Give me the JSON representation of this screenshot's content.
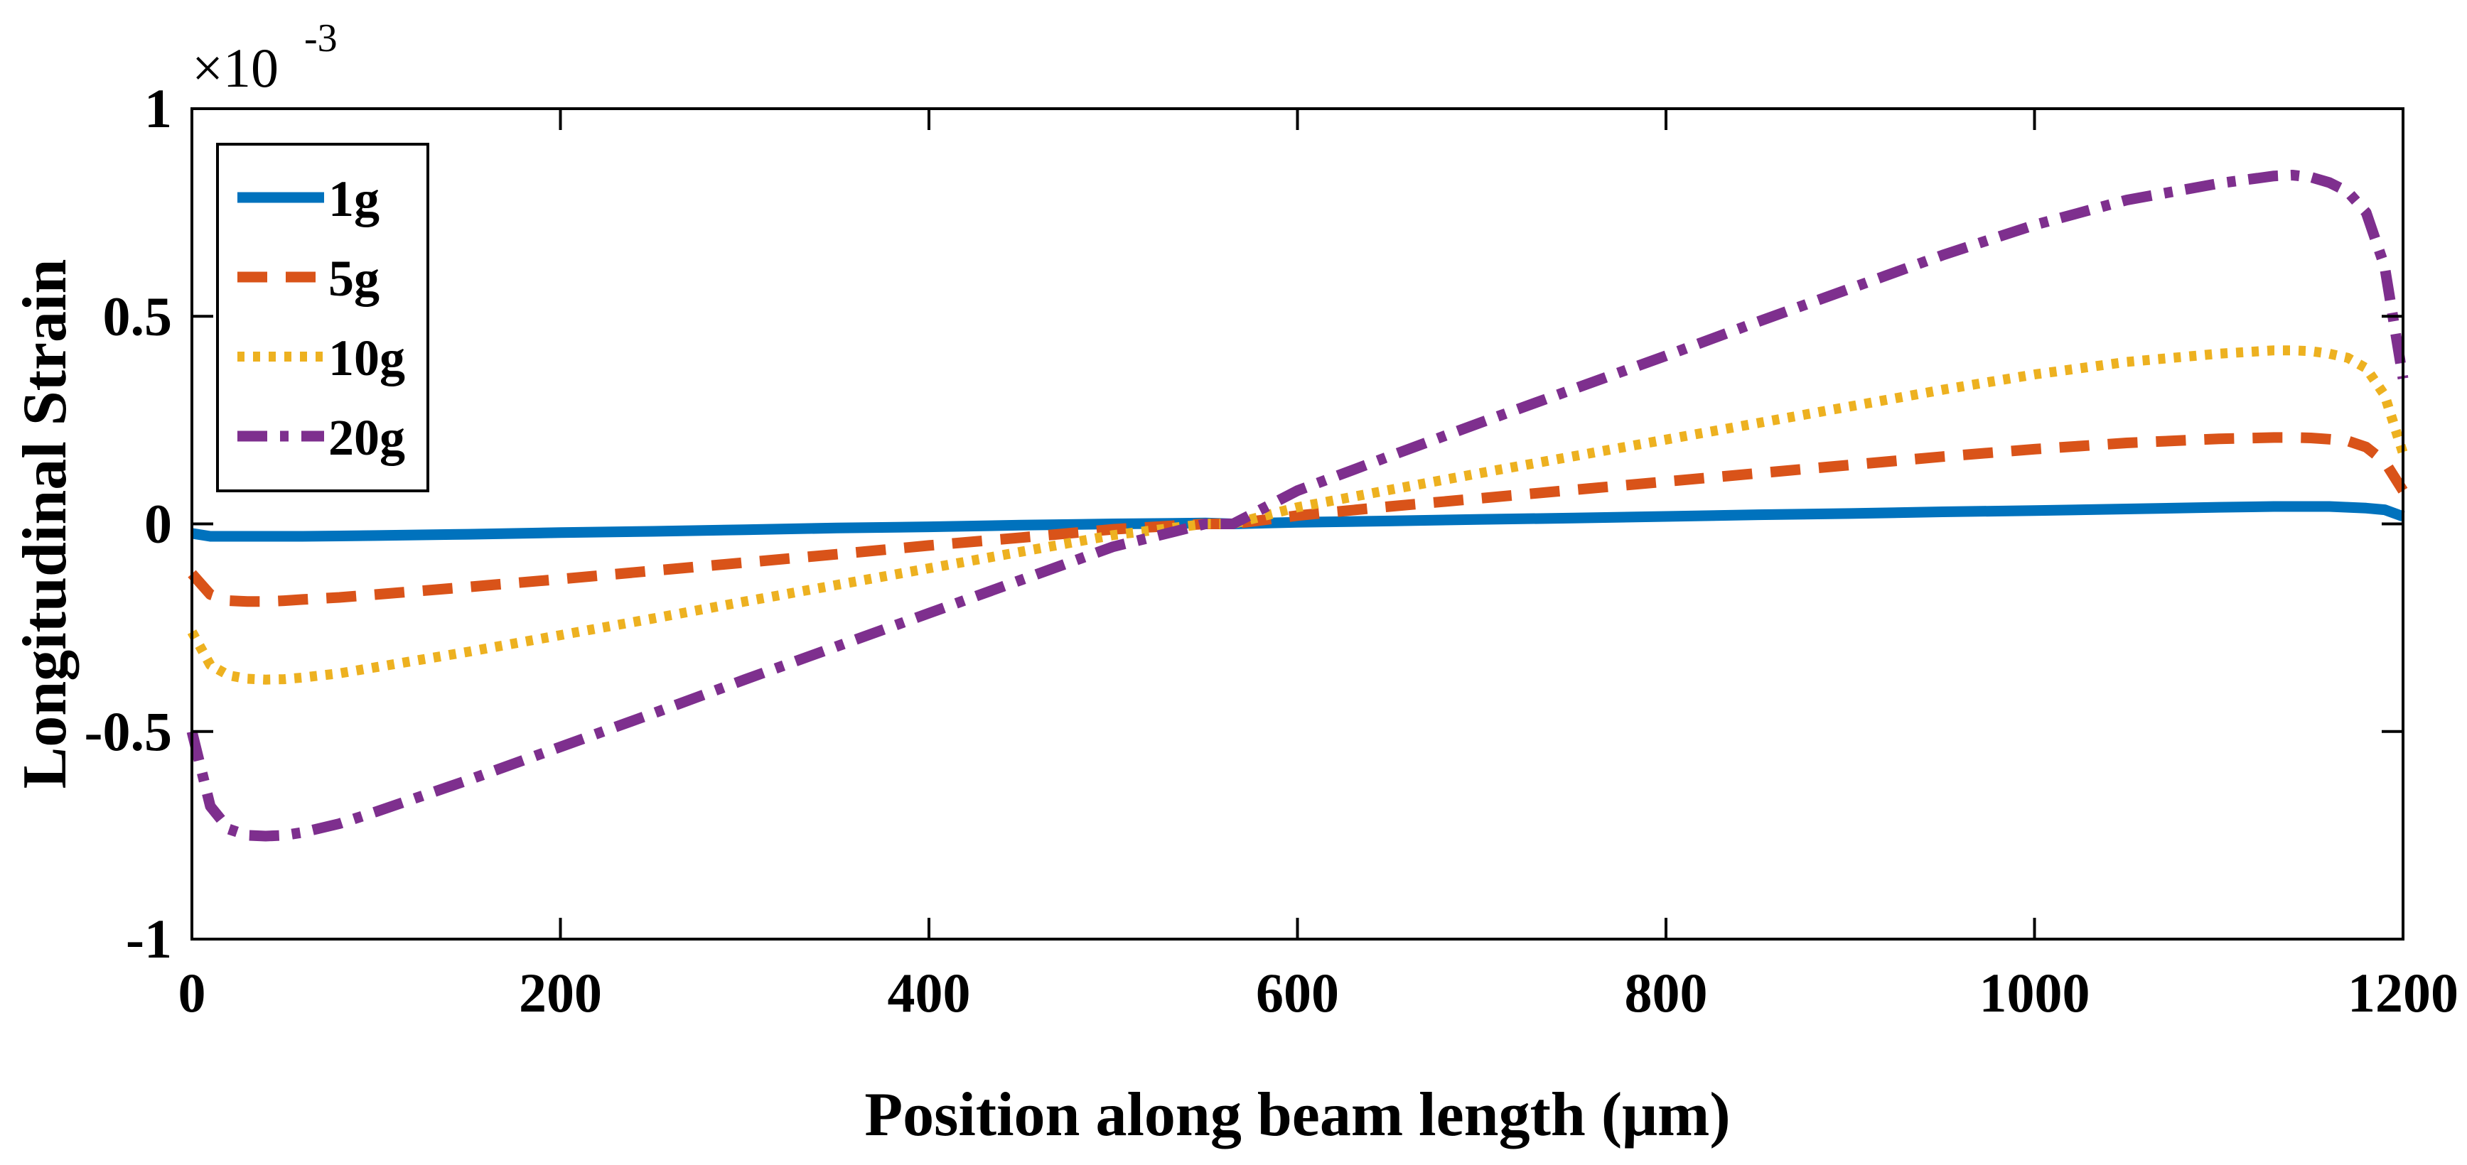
{
  "chart_data": {
    "type": "line",
    "title": "",
    "xlabel": "Position along beam length (μm)",
    "ylabel": "Longitudinal Strain",
    "y_multiplier_label": "×10",
    "y_multiplier_exponent": "-3",
    "xlim": [
      0,
      1200
    ],
    "ylim": [
      -1,
      1
    ],
    "x_ticks": [
      0,
      200,
      400,
      600,
      800,
      1000,
      1200
    ],
    "x_tick_labels": [
      "0",
      "200",
      "400",
      "600",
      "800",
      "1000",
      "1200"
    ],
    "y_ticks": [
      1,
      0.5,
      0,
      -0.5,
      -1
    ],
    "y_tick_labels": [
      "1",
      "0.5",
      "0",
      "-0.5",
      "-1"
    ],
    "grid": false,
    "legend_position": "top-left",
    "x": [
      0,
      10,
      20,
      30,
      40,
      50,
      60,
      80,
      100,
      150,
      200,
      250,
      300,
      350,
      400,
      450,
      500,
      550,
      565,
      600,
      650,
      700,
      750,
      800,
      850,
      900,
      950,
      1000,
      1050,
      1100,
      1130,
      1140,
      1150,
      1160,
      1170,
      1180,
      1190,
      1200
    ],
    "series": [
      {
        "name": "1g",
        "color": "#0072BD",
        "style": "solid",
        "values": [
          -0.023,
          -0.03,
          -0.03,
          -0.03,
          -0.03,
          -0.03,
          -0.03,
          -0.029,
          -0.028,
          -0.025,
          -0.021,
          -0.018,
          -0.014,
          -0.01,
          -0.007,
          -0.003,
          0.0,
          0.002,
          0.0,
          0.004,
          0.007,
          0.011,
          0.014,
          0.018,
          0.022,
          0.025,
          0.029,
          0.032,
          0.036,
          0.04,
          0.042,
          0.042,
          0.042,
          0.042,
          0.04,
          0.038,
          0.034,
          0.018
        ]
      },
      {
        "name": "5g",
        "color": "#D95319",
        "style": "dashed",
        "values": [
          -0.12,
          -0.17,
          -0.185,
          -0.187,
          -0.187,
          -0.185,
          -0.182,
          -0.177,
          -0.17,
          -0.152,
          -0.133,
          -0.113,
          -0.093,
          -0.073,
          -0.052,
          -0.033,
          -0.013,
          0.0,
          0.0,
          0.02,
          0.042,
          0.062,
          0.082,
          0.102,
          0.122,
          0.142,
          0.162,
          0.18,
          0.195,
          0.205,
          0.208,
          0.208,
          0.207,
          0.204,
          0.2,
          0.185,
          0.15,
          0.08
        ]
      },
      {
        "name": "10g",
        "color": "#EDB120",
        "style": "dotted",
        "values": [
          -0.26,
          -0.34,
          -0.365,
          -0.373,
          -0.375,
          -0.374,
          -0.37,
          -0.36,
          -0.345,
          -0.308,
          -0.268,
          -0.228,
          -0.187,
          -0.147,
          -0.107,
          -0.067,
          -0.027,
          0.0,
          0.0,
          0.04,
          0.082,
          0.123,
          0.163,
          0.203,
          0.243,
          0.283,
          0.323,
          0.36,
          0.39,
          0.41,
          0.418,
          0.418,
          0.416,
          0.41,
          0.4,
          0.375,
          0.31,
          0.17
        ]
      },
      {
        "name": "20g",
        "color": "#7E2F8E",
        "style": "dash-dot",
        "values": [
          -0.5,
          -0.68,
          -0.735,
          -0.75,
          -0.752,
          -0.75,
          -0.743,
          -0.722,
          -0.693,
          -0.617,
          -0.537,
          -0.457,
          -0.375,
          -0.295,
          -0.215,
          -0.135,
          -0.055,
          0.0,
          0.0,
          0.08,
          0.163,
          0.245,
          0.325,
          0.405,
          0.487,
          0.567,
          0.647,
          0.72,
          0.78,
          0.82,
          0.838,
          0.84,
          0.835,
          0.822,
          0.8,
          0.75,
          0.62,
          0.35
        ]
      }
    ]
  }
}
